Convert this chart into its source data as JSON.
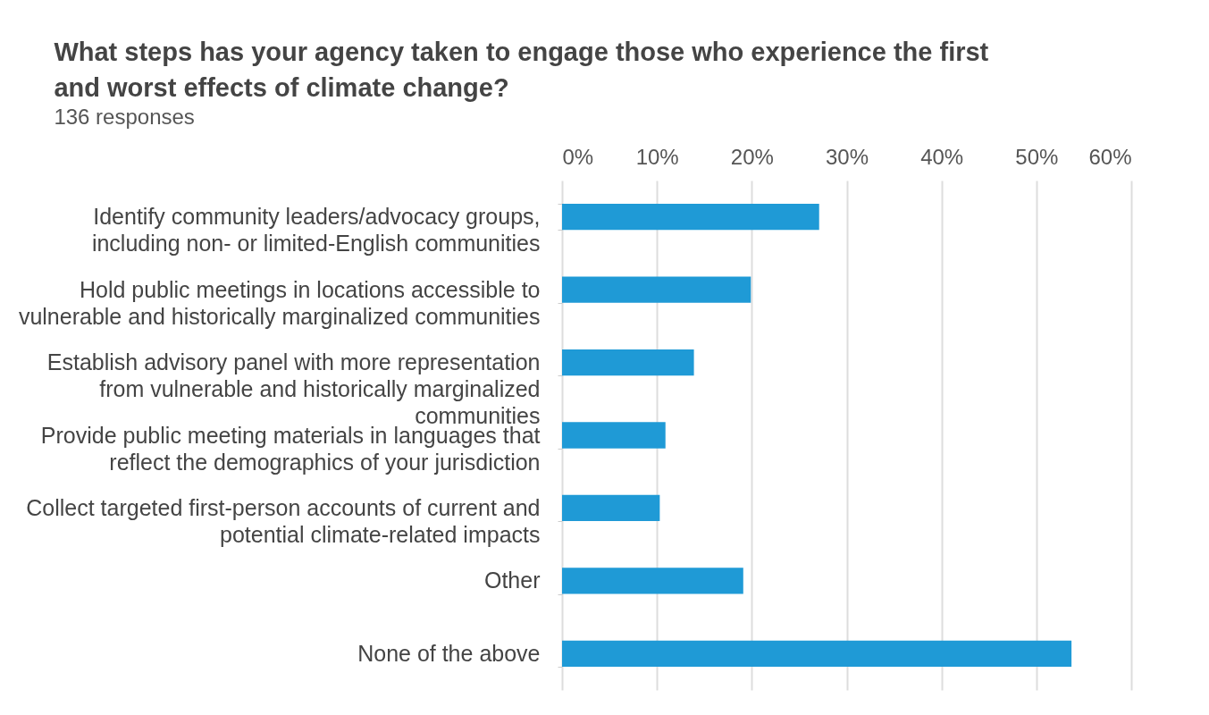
{
  "chart_data": {
    "type": "bar",
    "orientation": "horizontal",
    "title": "What steps has your agency taken to engage those who experience the first\nand worst effects of climate change?",
    "subtitle": "136 responses",
    "categories": [
      "Identify community leaders/advocacy groups,\nincluding non- or limited-English communities",
      "Hold public meetings in locations accessible to\nvulnerable and historically marginalized communities",
      "Establish advisory panel with more representation\nfrom vulnerable and historically marginalized\ncommunities",
      "Provide public meeting materials in languages that\nreflect the demographics of your jurisdiction",
      "Collect targeted first-person accounts of current and\npotential climate-related impacts",
      "Other",
      "None of the above"
    ],
    "values": [
      27.1,
      19.9,
      13.9,
      10.9,
      10.3,
      19.1,
      53.7
    ],
    "color": "#1f9ad6",
    "xlim": [
      0,
      60
    ],
    "xticks": [
      {
        "value": 0,
        "label": "0%"
      },
      {
        "value": 10,
        "label": "10%"
      },
      {
        "value": 20,
        "label": "20%"
      },
      {
        "value": 30,
        "label": "30%"
      },
      {
        "value": 40,
        "label": "40%"
      },
      {
        "value": 50,
        "label": "50%"
      },
      {
        "value": 60,
        "label": "60%"
      }
    ],
    "grid": "x"
  }
}
